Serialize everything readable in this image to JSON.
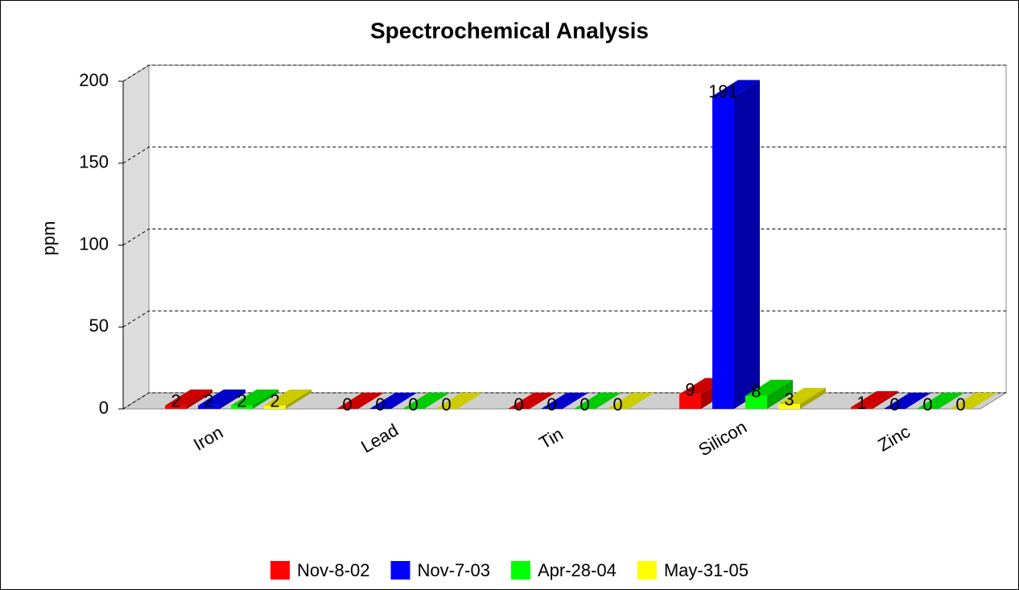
{
  "chart_data": {
    "type": "bar3d",
    "title": "Spectrochemical Analysis",
    "ylabel": "ppm",
    "categories": [
      "Iron",
      "Lead",
      "Tin",
      "Silicon",
      "Zinc"
    ],
    "series": [
      {
        "name": "Nov-8-02",
        "color": "#ff0000",
        "values": [
          2,
          0,
          0,
          9,
          1
        ]
      },
      {
        "name": "Nov-7-03",
        "color": "#0000ff",
        "values": [
          2,
          0,
          0,
          191,
          0
        ]
      },
      {
        "name": "Apr-28-04",
        "color": "#00ff00",
        "values": [
          2,
          0,
          0,
          8,
          0
        ]
      },
      {
        "name": "May-31-05",
        "color": "#ffff00",
        "values": [
          2,
          0,
          0,
          3,
          0
        ]
      }
    ],
    "ylim": [
      0,
      200
    ],
    "yticks": [
      0,
      50,
      100,
      150,
      200
    ],
    "grid": true,
    "legend": "bottom"
  }
}
